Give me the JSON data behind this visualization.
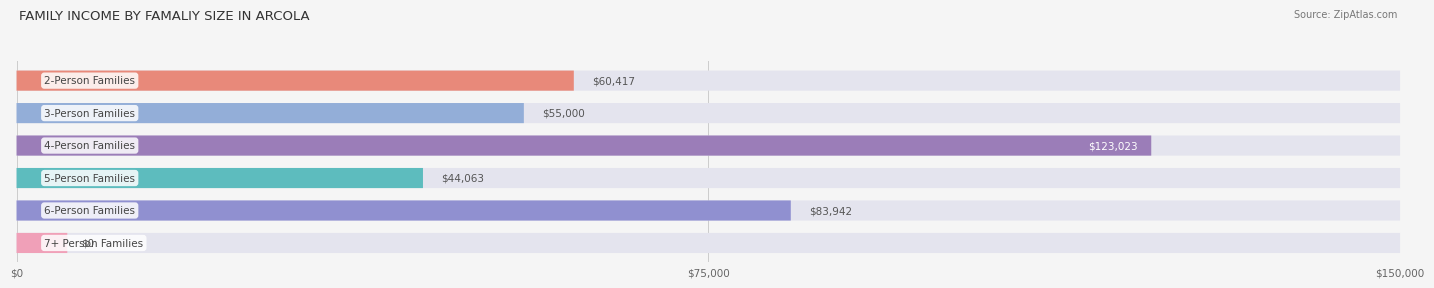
{
  "title": "FAMILY INCOME BY FAMALIY SIZE IN ARCOLA",
  "source": "Source: ZipAtlas.com",
  "categories": [
    "2-Person Families",
    "3-Person Families",
    "4-Person Families",
    "5-Person Families",
    "6-Person Families",
    "7+ Person Families"
  ],
  "values": [
    60417,
    55000,
    123023,
    44063,
    83942,
    0
  ],
  "bar_colors": [
    "#e8897a",
    "#93aed8",
    "#9b7db8",
    "#5dbcbe",
    "#9090d0",
    "#f0a0b8"
  ],
  "value_labels": [
    "$60,417",
    "$55,000",
    "$123,023",
    "$44,063",
    "$83,942",
    "$0"
  ],
  "label_inside": [
    false,
    false,
    true,
    false,
    false,
    false
  ],
  "xlim": [
    0,
    150000
  ],
  "xticks": [
    0,
    75000,
    150000
  ],
  "xtick_labels": [
    "$0",
    "$75,000",
    "$150,000"
  ],
  "background_color": "#f5f5f5",
  "bar_bg_color": "#e4e4ee",
  "bar_height": 0.62,
  "title_fontsize": 9.5,
  "label_fontsize": 7.5,
  "value_fontsize": 7.5,
  "source_fontsize": 7
}
